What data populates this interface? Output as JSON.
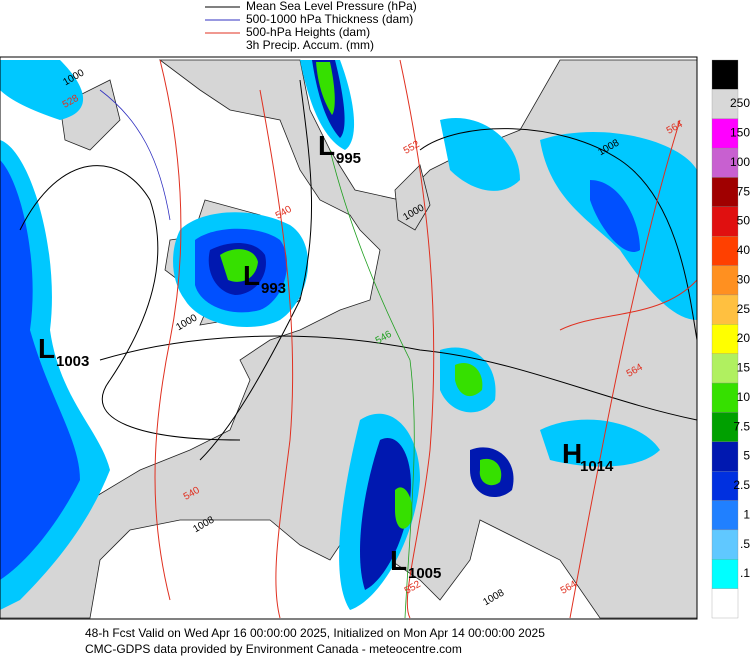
{
  "legend": {
    "items": [
      "Mean Sea Level Pressure (hPa)",
      "500-1000 hPa Thickness (dam)",
      "500-hPa Heights (dam)",
      "3h Precip. Accum. (mm)"
    ]
  },
  "colorbar": {
    "labels": [
      "250",
      "150",
      "100",
      "75",
      "50",
      "40",
      "30",
      "25",
      "20",
      "15",
      "10",
      "7.5",
      "5",
      "2.5",
      "1",
      ".5",
      ".1"
    ]
  },
  "centers": [
    {
      "letter": "L",
      "value": "995"
    },
    {
      "letter": "L",
      "value": "993"
    },
    {
      "letter": "L",
      "value": "1003"
    },
    {
      "letter": "H",
      "value": "1014"
    },
    {
      "letter": "L",
      "value": "1005"
    }
  ],
  "contour_labels": [
    "528",
    "1000",
    "540",
    "552",
    "1000",
    "1000",
    "546",
    "540",
    "1008",
    "564",
    "564",
    "1008",
    "552",
    "564",
    "1008"
  ],
  "footer": {
    "line1": "48-h Fcst Valid on Wed Apr 16 00:00:00 2025, Initialized on Mon Apr 14 00:00:00 2025",
    "line2": "CMC-GDPS data provided by Environment Canada - meteocentre.com"
  }
}
